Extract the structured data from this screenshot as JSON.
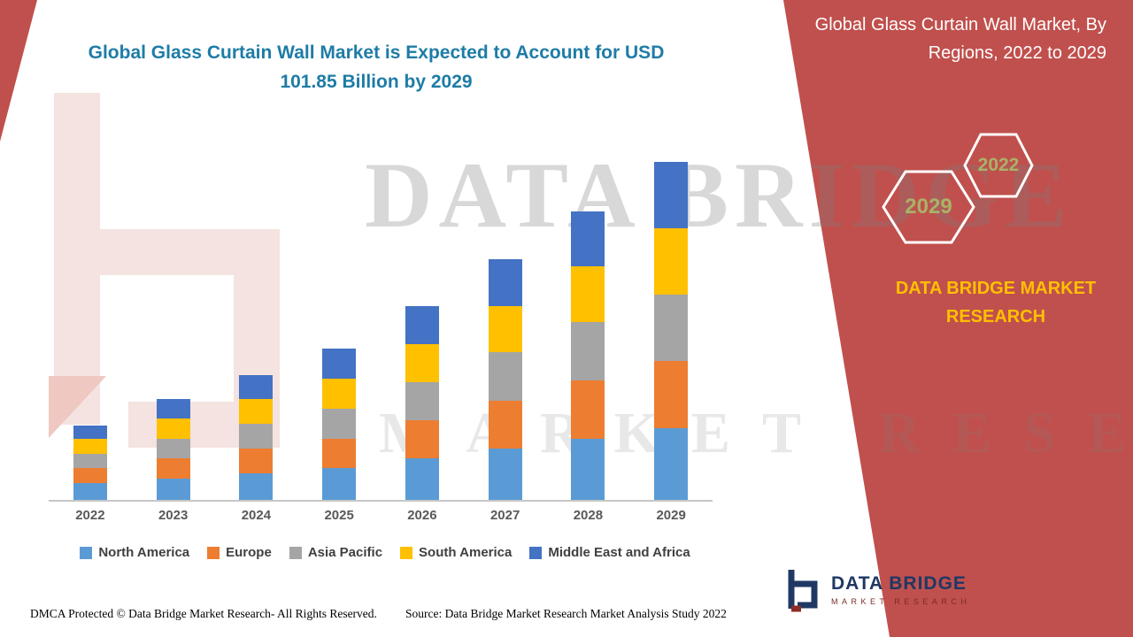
{
  "header": {
    "chart_title": "Global Glass Curtain Wall Market is Expected to Account for USD 101.85 Billion by 2029"
  },
  "right_panel": {
    "title": "Global Glass Curtain Wall Market, By Regions, 2022 to 2029",
    "hexagons": [
      {
        "label": "2029"
      },
      {
        "label": "2022"
      }
    ],
    "brand": "DATA BRIDGE MARKET RESEARCH",
    "bg_color": "#C0504D",
    "brand_color": "#FFC000",
    "hexagon_label_color": "#A9B266"
  },
  "watermark": {
    "line1": "DATA BRIDGE",
    "line2": "MARKET RESEARCH"
  },
  "logo": {
    "title": "DATA BRIDGE",
    "subtitle": "MARKET RESEARCH"
  },
  "footer": {
    "dmca": "DMCA Protected © Data Bridge Market Research- All Rights Reserved.",
    "source": "Source: Data Bridge Market Research Market Analysis Study 2022"
  },
  "chart_data": {
    "type": "bar",
    "stacked": true,
    "title": "Global Glass Curtain Wall Market is Expected to Account for USD 101.85 Billion by 2029",
    "unit": "USD Billion",
    "categories": [
      "2022",
      "2023",
      "2024",
      "2025",
      "2026",
      "2027",
      "2028",
      "2029"
    ],
    "series": [
      {
        "name": "North America",
        "color": "#5B9BD5",
        "values": [
          5.0,
          6.5,
          8.0,
          9.5,
          12.5,
          15.5,
          18.5,
          21.5
        ]
      },
      {
        "name": "Europe",
        "color": "#ED7D31",
        "values": [
          4.5,
          6.0,
          7.5,
          9.0,
          11.5,
          14.5,
          17.5,
          20.5
        ]
      },
      {
        "name": "Asia Pacific",
        "color": "#A5A5A5",
        "values": [
          4.5,
          6.0,
          7.5,
          9.0,
          11.5,
          14.5,
          17.5,
          20.0
        ]
      },
      {
        "name": "South America",
        "color": "#FFC000",
        "values": [
          4.5,
          6.0,
          7.5,
          9.0,
          11.5,
          14.0,
          17.0,
          20.0
        ]
      },
      {
        "name": "Middle East and Africa",
        "color": "#4472C4",
        "values": [
          4.0,
          6.0,
          7.0,
          9.0,
          11.5,
          14.0,
          16.5,
          19.85
        ]
      }
    ],
    "totals": [
      22.5,
      30.5,
      37.5,
      45.5,
      58.5,
      72.5,
      87.0,
      101.85
    ],
    "ylim": [
      0,
      105
    ],
    "grid": false,
    "legend_position": "bottom"
  }
}
